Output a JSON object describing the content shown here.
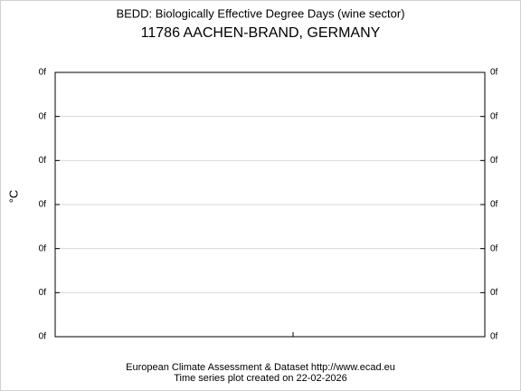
{
  "chart_data": {
    "type": "line",
    "title": "BEDD: Biologically Effective Degree Days (wine sector)",
    "subtitle": "11786 AACHEN-BRAND, GERMANY",
    "y_label": "°C",
    "footer": [
      "European Climate Assessment & Dataset  http://www.ecad.eu",
      "Time series plot created on 22-02-2026"
    ],
    "ylim": [
      0,
      6
    ],
    "yticks": [
      {
        "value": 0,
        "label": "0f"
      },
      {
        "value": 1,
        "label": "0f"
      },
      {
        "value": 2,
        "label": "0f"
      },
      {
        "value": 3,
        "label": "0f"
      },
      {
        "value": 4,
        "label": "0f"
      },
      {
        "value": 5,
        "label": "0f"
      },
      {
        "value": 6,
        "label": "0f"
      }
    ],
    "grid": true
  }
}
